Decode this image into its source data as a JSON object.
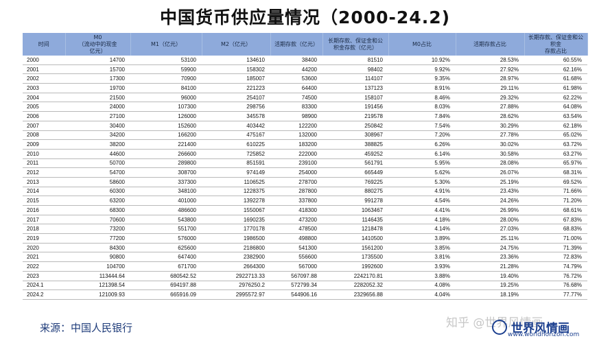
{
  "title": "中国货币供应量情况（2000-24.2)",
  "headers": [
    "时间",
    "M0\n（流动中的现金\n亿元）",
    "M1（亿元）",
    "M2（亿元）",
    "活期存款（亿元）",
    "长期存款、保证金和公\n积金存款（亿元）",
    "M0占比",
    "活期存款占比",
    "长期存款、保证金和公积金\n存款占比"
  ],
  "rows": [
    [
      "2000",
      "14700",
      "53100",
      "134610",
      "38400",
      "81510",
      "10.92%",
      "28.53%",
      "60.55%"
    ],
    [
      "2001",
      "15700",
      "59900",
      "158302",
      "44200",
      "98402",
      "9.92%",
      "27.92%",
      "62.16%"
    ],
    [
      "2002",
      "17300",
      "70900",
      "185007",
      "53600",
      "114107",
      "9.35%",
      "28.97%",
      "61.68%"
    ],
    [
      "2003",
      "19700",
      "84100",
      "221223",
      "64400",
      "137123",
      "8.91%",
      "29.11%",
      "61.98%"
    ],
    [
      "2004",
      "21500",
      "96000",
      "254107",
      "74500",
      "158107",
      "8.46%",
      "29.32%",
      "62.22%"
    ],
    [
      "2005",
      "24000",
      "107300",
      "298756",
      "83300",
      "191456",
      "8.03%",
      "27.88%",
      "64.08%"
    ],
    [
      "2006",
      "27100",
      "126000",
      "345578",
      "98900",
      "219578",
      "7.84%",
      "28.62%",
      "63.54%"
    ],
    [
      "2007",
      "30400",
      "152600",
      "403442",
      "122200",
      "250842",
      "7.54%",
      "30.29%",
      "62.18%"
    ],
    [
      "2008",
      "34200",
      "166200",
      "475167",
      "132000",
      "308967",
      "7.20%",
      "27.78%",
      "65.02%"
    ],
    [
      "2009",
      "38200",
      "221400",
      "610225",
      "183200",
      "388825",
      "6.26%",
      "30.02%",
      "63.72%"
    ],
    [
      "2010",
      "44600",
      "266600",
      "725852",
      "222000",
      "459252",
      "6.14%",
      "30.58%",
      "63.27%"
    ],
    [
      "2011",
      "50700",
      "289800",
      "851591",
      "239100",
      "561791",
      "5.95%",
      "28.08%",
      "65.97%"
    ],
    [
      "2012",
      "54700",
      "308700",
      "974149",
      "254000",
      "665449",
      "5.62%",
      "26.07%",
      "68.31%"
    ],
    [
      "2013",
      "58600",
      "337300",
      "1106525",
      "278700",
      "769225",
      "5.30%",
      "25.19%",
      "69.52%"
    ],
    [
      "2014",
      "60300",
      "348100",
      "1228375",
      "287800",
      "880275",
      "4.91%",
      "23.43%",
      "71.66%"
    ],
    [
      "2015",
      "63200",
      "401000",
      "1392278",
      "337800",
      "991278",
      "4.54%",
      "24.26%",
      "71.20%"
    ],
    [
      "2016",
      "68300",
      "486600",
      "1550067",
      "418300",
      "1063467",
      "4.41%",
      "26.99%",
      "68.61%"
    ],
    [
      "2017",
      "70600",
      "543800",
      "1690235",
      "473200",
      "1146435",
      "4.18%",
      "28.00%",
      "67.83%"
    ],
    [
      "2018",
      "73200",
      "551700",
      "1770178",
      "478500",
      "1218478",
      "4.14%",
      "27.03%",
      "68.83%"
    ],
    [
      "2019",
      "77200",
      "576000",
      "1986500",
      "498800",
      "1410500",
      "3.89%",
      "25.11%",
      "71.00%"
    ],
    [
      "2020",
      "84300",
      "625600",
      "2186800",
      "541300",
      "1561200",
      "3.85%",
      "24.75%",
      "71.39%"
    ],
    [
      "2021",
      "90800",
      "647400",
      "2382900",
      "556600",
      "1735500",
      "3.81%",
      "23.36%",
      "72.83%"
    ],
    [
      "2022",
      "104700",
      "671700",
      "2664300",
      "567000",
      "1992600",
      "3.93%",
      "21.28%",
      "74.79%"
    ],
    [
      "2023",
      "113444.64",
      "680542.52",
      "2922713.33",
      "567097.88",
      "2242170.81",
      "3.88%",
      "19.40%",
      "76.72%"
    ],
    [
      "2024.1",
      "121398.54",
      "694197.88",
      "2976250.2",
      "572799.34",
      "2282052.32",
      "4.08%",
      "19.25%",
      "76.68%"
    ],
    [
      "2024.2",
      "121009.93",
      "665916.09",
      "2995572.97",
      "544906.16",
      "2329656.88",
      "4.04%",
      "18.19%",
      "77.77%"
    ]
  ],
  "source": "来源：中国人民银行",
  "watermark": {
    "zhihu": "知乎 @世界风情画",
    "brand": "世界风情画",
    "url": "www.worldhorizon.com"
  }
}
